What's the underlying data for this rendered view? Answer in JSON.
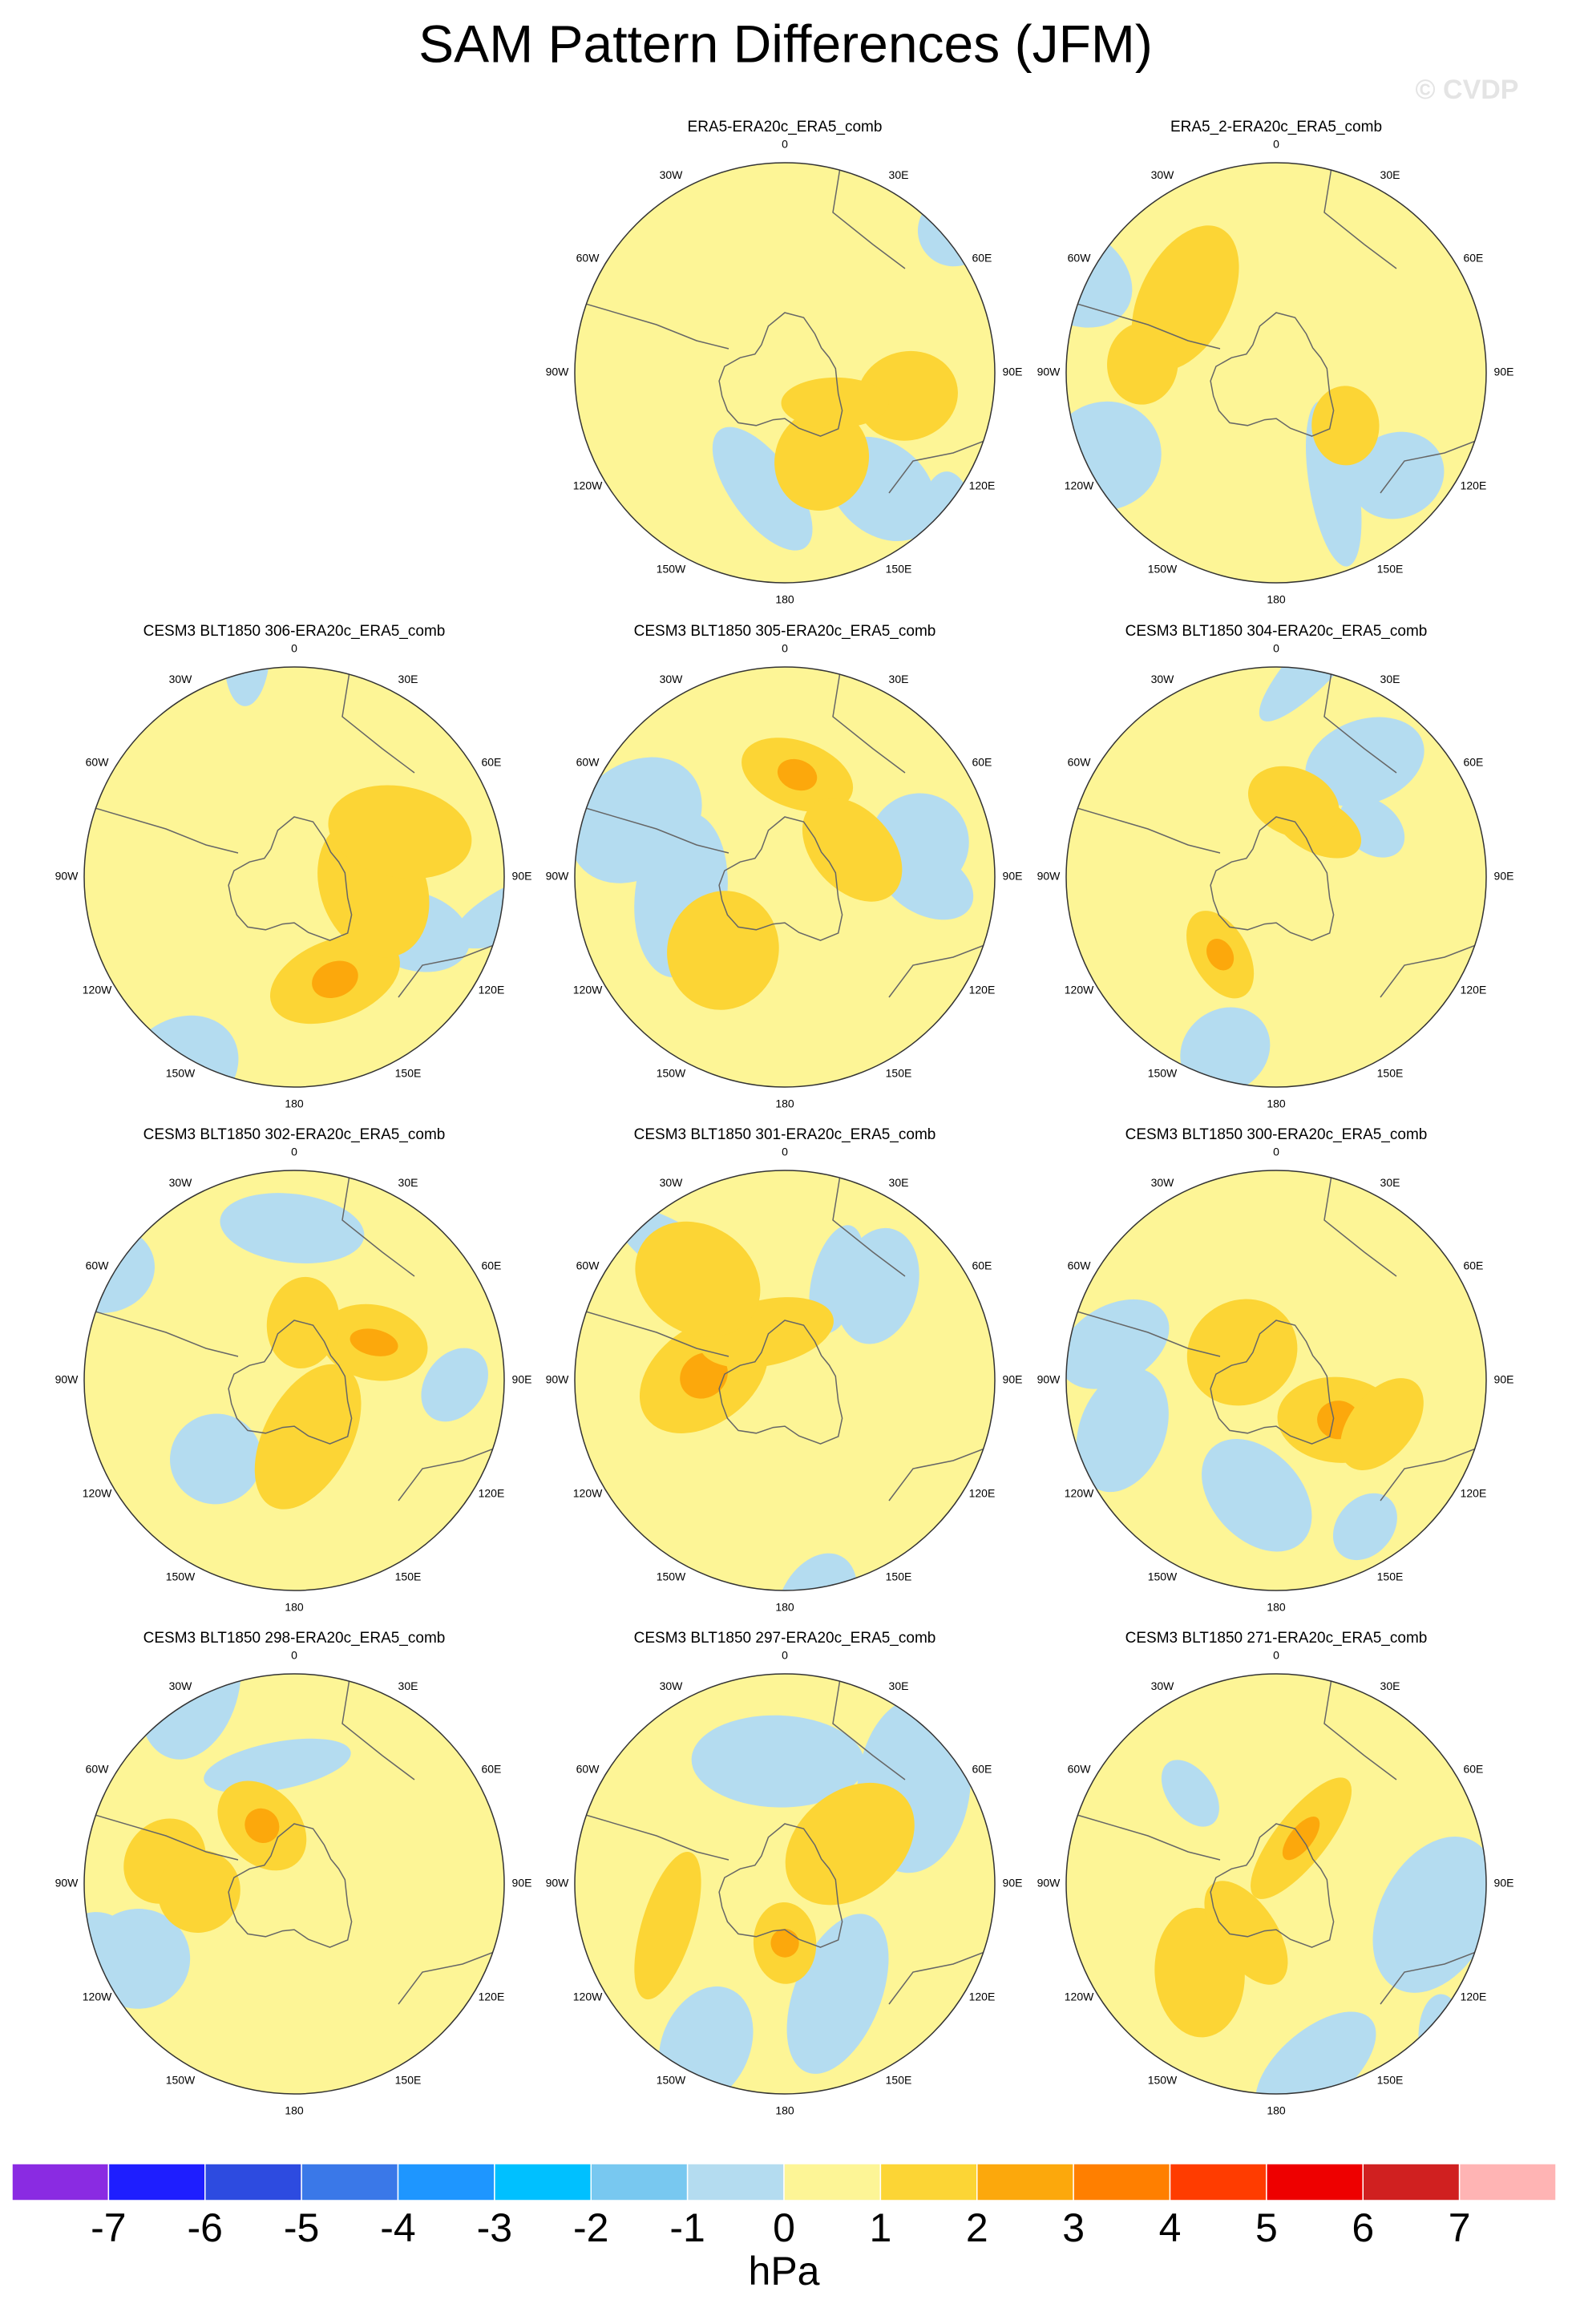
{
  "title": "SAM Pattern Differences (JFM)",
  "watermark": "© CVDP",
  "longitude_labels": [
    "0",
    "30E",
    "60E",
    "90E",
    "120E",
    "150E",
    "180",
    "150W",
    "120W",
    "90W",
    "60W",
    "30W"
  ],
  "panels": [
    {
      "title": "ERA5-ERA20c_ERA5_comb"
    },
    {
      "title": "ERA5_2-ERA20c_ERA5_comb"
    },
    {
      "title": "CESM3 BLT1850 306-ERA20c_ERA5_comb"
    },
    {
      "title": "CESM3 BLT1850 305-ERA20c_ERA5_comb"
    },
    {
      "title": "CESM3 BLT1850 304-ERA20c_ERA5_comb"
    },
    {
      "title": "CESM3 BLT1850 302-ERA20c_ERA5_comb"
    },
    {
      "title": "CESM3 BLT1850 301-ERA20c_ERA5_comb"
    },
    {
      "title": "CESM3 BLT1850 300-ERA20c_ERA5_comb"
    },
    {
      "title": "CESM3 BLT1850 298-ERA20c_ERA5_comb"
    },
    {
      "title": "CESM3 BLT1850 297-ERA20c_ERA5_comb"
    },
    {
      "title": "CESM3 BLT1850 271-ERA20c_ERA5_comb"
    }
  ],
  "colorbar": {
    "colors": [
      "#8a2be2",
      "#1e1eff",
      "#2d4be0",
      "#3a78e8",
      "#1e96ff",
      "#00c0ff",
      "#78c8f0",
      "#b4dcf0",
      "#fdf596",
      "#fcd535",
      "#fca80c",
      "#ff7f00",
      "#ff3c00",
      "#ee0000",
      "#d02020",
      "#ffb4b4"
    ],
    "ticks": [
      -7,
      -6,
      -5,
      -4,
      -3,
      -2,
      -1,
      0,
      1,
      2,
      3,
      4,
      5,
      6,
      7
    ],
    "label": "hPa"
  }
}
